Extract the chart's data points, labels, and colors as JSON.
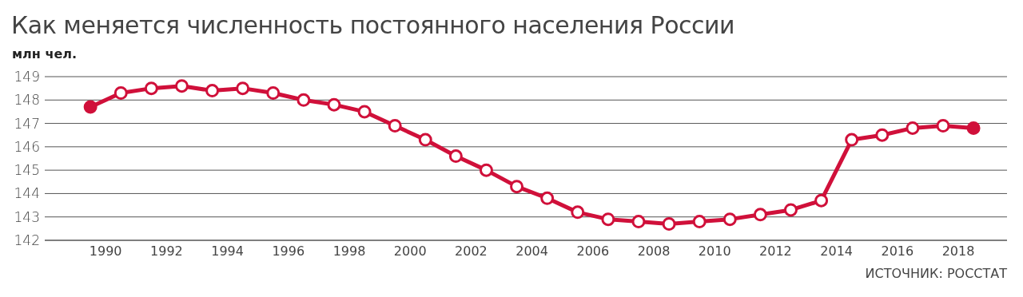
{
  "chart_data": {
    "type": "line",
    "title": "Как меняется численность постоянного населения России",
    "ylabel": "млн чел.",
    "annotations": [
      "ИСТОЧНИК: РОССТАТ"
    ],
    "x": [
      1990,
      1991,
      1992,
      1993,
      1994,
      1995,
      1996,
      1997,
      1998,
      1999,
      2000,
      2001,
      2002,
      2003,
      2004,
      2005,
      2006,
      2007,
      2008,
      2009,
      2010,
      2011,
      2012,
      2013,
      2014,
      2015,
      2016,
      2017,
      2018,
      2019
    ],
    "series": [
      {
        "color": "#d0103a",
        "values": [
          147.7,
          148.3,
          148.5,
          148.6,
          148.4,
          148.5,
          148.3,
          148.0,
          147.8,
          147.5,
          146.9,
          146.3,
          145.6,
          145.0,
          144.3,
          143.8,
          143.2,
          142.9,
          142.8,
          142.7,
          142.8,
          142.9,
          143.1,
          143.3,
          143.7,
          146.3,
          146.5,
          146.8,
          146.9,
          146.8
        ]
      }
    ],
    "xlim": [
      1988.5,
      2020.1
    ],
    "xticks": [
      {
        "value": 1990.5,
        "label": "1990"
      },
      {
        "value": 1992.5,
        "label": "1992"
      },
      {
        "value": 1994.5,
        "label": "1994"
      },
      {
        "value": 1996.5,
        "label": "1996"
      },
      {
        "value": 1998.5,
        "label": "1998"
      },
      {
        "value": 2000.5,
        "label": "2000"
      },
      {
        "value": 2002.5,
        "label": "2002"
      },
      {
        "value": 2004.5,
        "label": "2004"
      },
      {
        "value": 2006.5,
        "label": "2006"
      },
      {
        "value": 2008.5,
        "label": "2008"
      },
      {
        "value": 2010.5,
        "label": "2010"
      },
      {
        "value": 2012.5,
        "label": "2012"
      },
      {
        "value": 2014.5,
        "label": "2014"
      },
      {
        "value": 2016.5,
        "label": "2016"
      },
      {
        "value": 2018.5,
        "label": "2018"
      }
    ],
    "ylim": [
      142,
      149
    ],
    "yticks": [
      142,
      143,
      144,
      145,
      146,
      147,
      148,
      149
    ],
    "grid": "y",
    "marker": "circle",
    "line_style": "solid"
  }
}
